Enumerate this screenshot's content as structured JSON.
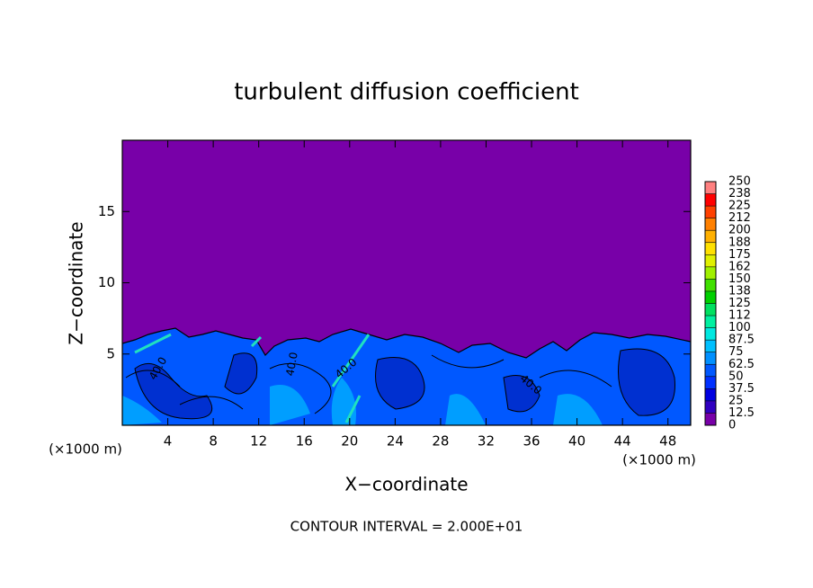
{
  "chart_data": {
    "type": "contour",
    "title": "turbulent diffusion coefficient",
    "x_label": "X−coordinate",
    "y_label": "Z−coordinate",
    "x_unit": "(×1000 m)",
    "y_unit": "(×1000 m)",
    "footer": "CONTOUR INTERVAL = 2.000E+01",
    "contour_labels": [
      "40.0",
      "40.0",
      "40.0",
      "40.0"
    ],
    "xlim": [
      0,
      50
    ],
    "xticks": [
      4,
      8,
      12,
      16,
      20,
      24,
      28,
      32,
      36,
      40,
      44,
      48
    ],
    "ylim": [
      0,
      20
    ],
    "yticks": [
      5,
      10,
      15
    ],
    "clim": [
      0,
      250
    ],
    "cticks": [
      0,
      12.5,
      25,
      37.5,
      50,
      62.5,
      75,
      87.5,
      100,
      {
        "value": 112.5,
        "label": "112"
      },
      125,
      {
        "value": 137.5,
        "label": "138"
      },
      150,
      {
        "value": 162.5,
        "label": "162"
      },
      175,
      {
        "value": 187.5,
        "label": "188"
      },
      200,
      {
        "value": 212.5,
        "label": "212"
      },
      225,
      {
        "value": 237.5,
        "label": "238"
      },
      250
    ],
    "colors": [
      "#7800a8",
      "#3000c0",
      "#0000e0",
      "#0030ff",
      "#0058ff",
      "#0090ff",
      "#00c0ff",
      "#00e8e0",
      "#00f0a0",
      "#00e060",
      "#00d000",
      "#40e000",
      "#a0f000",
      "#e0f000",
      "#ffe000",
      "#ffb000",
      "#ff8000",
      "#ff4000",
      "#ff0000",
      "#ff8080"
    ]
  }
}
